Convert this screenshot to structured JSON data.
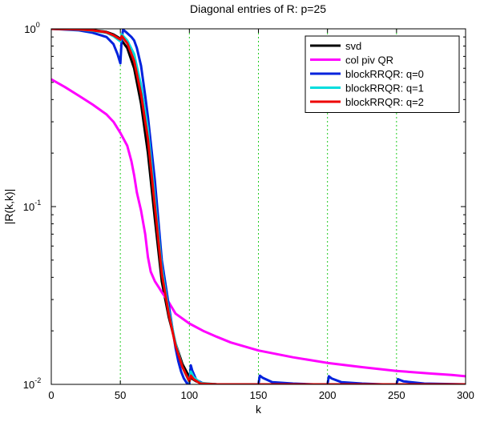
{
  "chart_data": {
    "type": "line",
    "title": "Diagonal entries of R: p=25",
    "xlabel": "k",
    "ylabel": "|R(k,k)|",
    "xlim": [
      0,
      300
    ],
    "ylim": [
      0.01,
      1
    ],
    "yscale": "log",
    "x_ticks": [
      0,
      50,
      100,
      150,
      200,
      250,
      300
    ],
    "x_tick_labels": [
      "0",
      "50",
      "100",
      "150",
      "200",
      "250",
      "300"
    ],
    "y_ticks": [
      0.01,
      0.1,
      1
    ],
    "y_tick_labels": [
      {
        "base": "10",
        "exp": "-2"
      },
      {
        "base": "10",
        "exp": "-1"
      },
      {
        "base": "10",
        "exp": "0"
      }
    ],
    "vertical_gridlines": [
      50,
      100,
      150,
      200,
      250
    ],
    "gridline_color": "#22cc22",
    "legend_position": "top-right",
    "series": [
      {
        "name": "svd",
        "color": "#000000",
        "x": [
          0,
          20,
          30,
          40,
          45,
          50,
          55,
          60,
          65,
          70,
          75,
          80,
          85,
          90,
          95,
          100,
          105,
          110,
          120,
          150,
          200,
          250,
          300
        ],
        "y": [
          1.0,
          0.995,
          0.985,
          0.96,
          0.93,
          0.88,
          0.78,
          0.6,
          0.38,
          0.2,
          0.085,
          0.038,
          0.024,
          0.017,
          0.013,
          0.011,
          0.0104,
          0.0101,
          0.01,
          0.01,
          0.01,
          0.01,
          0.01
        ]
      },
      {
        "name": "col piv QR",
        "color": "#ff00ff",
        "x": [
          0,
          10,
          20,
          30,
          40,
          45,
          50,
          55,
          58,
          60,
          62,
          65,
          68,
          70,
          72,
          75,
          78,
          80,
          85,
          90,
          100,
          110,
          120,
          130,
          150,
          175,
          200,
          225,
          250,
          275,
          290,
          300
        ],
        "y": [
          0.52,
          0.47,
          0.42,
          0.375,
          0.33,
          0.3,
          0.26,
          0.22,
          0.18,
          0.15,
          0.12,
          0.095,
          0.07,
          0.052,
          0.043,
          0.038,
          0.035,
          0.033,
          0.029,
          0.025,
          0.022,
          0.02,
          0.0185,
          0.0172,
          0.0155,
          0.0142,
          0.0132,
          0.0125,
          0.0119,
          0.0115,
          0.0113,
          0.0111
        ]
      },
      {
        "name": "blockRRQR: q=0",
        "color": "#0022dd",
        "x": [
          0,
          20,
          30,
          40,
          45,
          48,
          50,
          51,
          52,
          54,
          56,
          58,
          60,
          62,
          65,
          68,
          70,
          75,
          80,
          85,
          88,
          90,
          92,
          94,
          96,
          98,
          100,
          101,
          102,
          105,
          110,
          120,
          140,
          150,
          151,
          153,
          160,
          175,
          190,
          200,
          201,
          203,
          210,
          225,
          240,
          250,
          251,
          255,
          270,
          300
        ],
        "y": [
          1.0,
          0.98,
          0.95,
          0.9,
          0.82,
          0.72,
          0.64,
          0.88,
          0.99,
          0.96,
          0.93,
          0.9,
          0.86,
          0.78,
          0.62,
          0.42,
          0.32,
          0.14,
          0.05,
          0.028,
          0.02,
          0.016,
          0.0135,
          0.0118,
          0.0108,
          0.0102,
          0.01,
          0.0128,
          0.012,
          0.0106,
          0.0101,
          0.01,
          0.01,
          0.01,
          0.0112,
          0.0109,
          0.0103,
          0.0101,
          0.01,
          0.01,
          0.0111,
          0.0108,
          0.0103,
          0.0101,
          0.01,
          0.01,
          0.0107,
          0.0104,
          0.0101,
          0.01
        ]
      },
      {
        "name": "blockRRQR: q=1",
        "color": "#00dddd",
        "x": [
          0,
          20,
          30,
          40,
          45,
          50,
          51,
          55,
          60,
          65,
          70,
          75,
          80,
          85,
          90,
          95,
          100,
          101,
          103,
          108,
          120,
          150,
          200,
          250,
          300
        ],
        "y": [
          1.0,
          0.99,
          0.975,
          0.95,
          0.91,
          0.85,
          0.93,
          0.86,
          0.72,
          0.48,
          0.27,
          0.11,
          0.045,
          0.026,
          0.017,
          0.0125,
          0.0103,
          0.0118,
          0.011,
          0.0102,
          0.01,
          0.01,
          0.01,
          0.01,
          0.01
        ]
      },
      {
        "name": "blockRRQR: q=2",
        "color": "#ee0000",
        "x": [
          0,
          20,
          30,
          40,
          45,
          50,
          51,
          55,
          60,
          65,
          70,
          75,
          80,
          85,
          90,
          95,
          100,
          101,
          103,
          108,
          120,
          150,
          200,
          250,
          300
        ],
        "y": [
          1.0,
          0.993,
          0.98,
          0.955,
          0.92,
          0.87,
          0.91,
          0.83,
          0.66,
          0.43,
          0.24,
          0.1,
          0.042,
          0.025,
          0.0165,
          0.0125,
          0.0104,
          0.0112,
          0.0107,
          0.0101,
          0.01,
          0.01,
          0.01,
          0.01,
          0.01
        ]
      }
    ]
  }
}
